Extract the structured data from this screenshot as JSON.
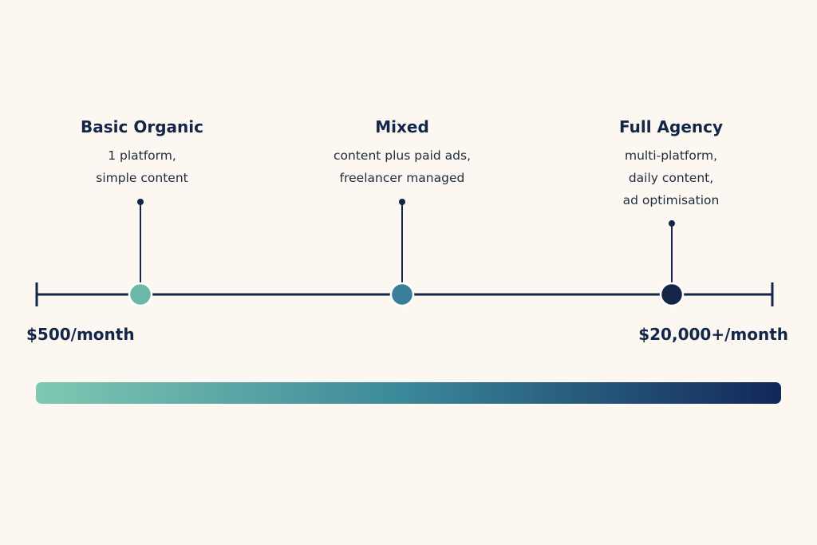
{
  "tiers": [
    {
      "title": "Basic Organic",
      "desc_lines": [
        "1 platform,",
        "simple content"
      ],
      "color": "#6bb8a8"
    },
    {
      "title": "Mixed",
      "desc_lines": [
        "content plus paid ads,",
        "freelancer managed"
      ],
      "color": "#3a7d96"
    },
    {
      "title": "Full Agency",
      "desc_lines": [
        "multi-platform,",
        "daily content,",
        "ad optimisation"
      ],
      "color": "#13264a"
    }
  ],
  "scale": {
    "min_label": "$500/month",
    "max_label": "$20,000+/month",
    "line_color": "#13264a",
    "gradient_start": "#7fc8b2",
    "gradient_mid": "#3a8799",
    "gradient_end": "#12275a"
  }
}
